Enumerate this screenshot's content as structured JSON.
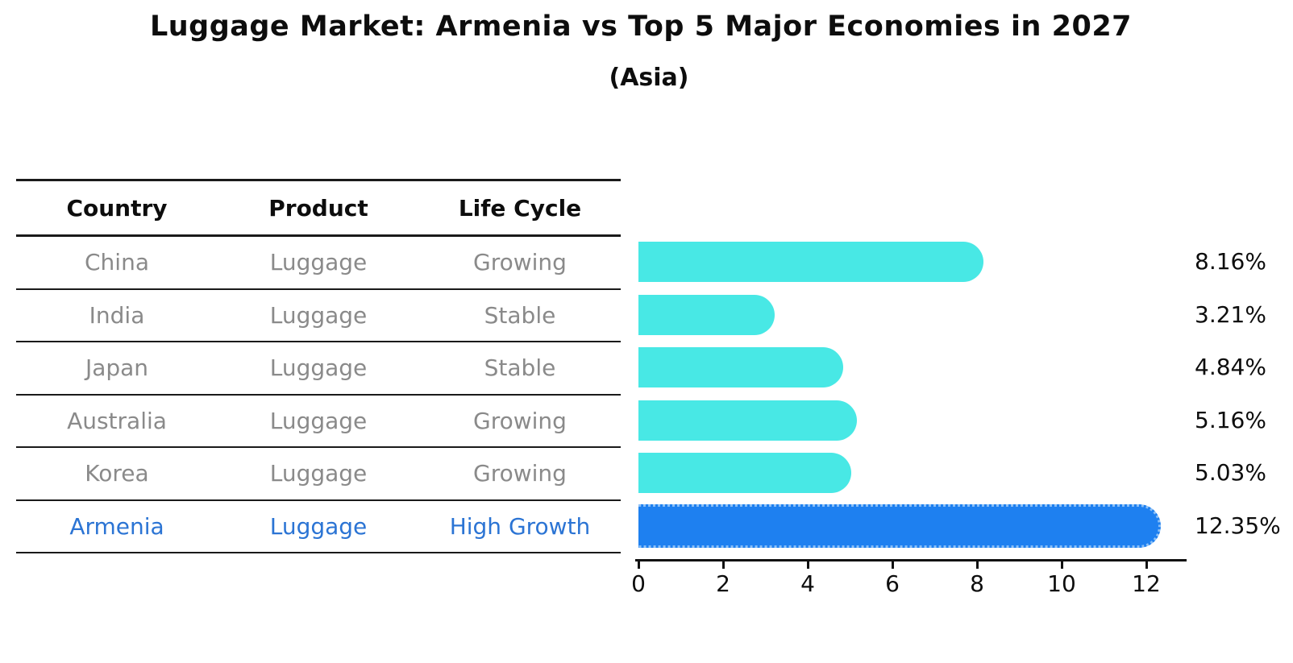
{
  "title": "Luggage Market: Armenia vs Top 5 Major Economies in 2027",
  "subtitle": "(Asia)",
  "table": {
    "headers": [
      "Country",
      "Product",
      "Life Cycle"
    ],
    "rows": [
      {
        "country": "China",
        "product": "Luggage",
        "life_cycle": "Growing",
        "highlight": false
      },
      {
        "country": "India",
        "product": "Luggage",
        "life_cycle": "Stable",
        "highlight": false
      },
      {
        "country": "Japan",
        "product": "Luggage",
        "life_cycle": "Stable",
        "highlight": false
      },
      {
        "country": "Australia",
        "product": "Luggage",
        "life_cycle": "Growing",
        "highlight": false
      },
      {
        "country": "Korea",
        "product": "Luggage",
        "life_cycle": "Growing",
        "highlight": false
      },
      {
        "country": "Armenia",
        "product": "Luggage",
        "life_cycle": "High Growth",
        "highlight": true
      }
    ]
  },
  "chart_data": {
    "type": "bar",
    "orientation": "horizontal",
    "title": "Luggage Market: Armenia vs Top 5 Major Economies in 2027",
    "subtitle": "(Asia)",
    "categories": [
      "China",
      "India",
      "Japan",
      "Australia",
      "Korea",
      "Armenia"
    ],
    "values": [
      8.16,
      3.21,
      4.84,
      5.16,
      5.03,
      12.35
    ],
    "value_labels": [
      "8.16%",
      "3.21%",
      "4.84%",
      "5.16%",
      "5.03%",
      "12.35%"
    ],
    "x_ticks": [
      0,
      2,
      4,
      6,
      8,
      10,
      12
    ],
    "xlim": [
      0,
      13
    ],
    "grid": false,
    "legend": false,
    "highlight_index": 5
  },
  "colors": {
    "bar": "#48e8e5",
    "highlight_bar": "#1e80f0",
    "highlight_text": "#2b74d4",
    "axis": "#111111",
    "table_text": "#8a8a8a",
    "heading_text": "#0d0d0d"
  }
}
